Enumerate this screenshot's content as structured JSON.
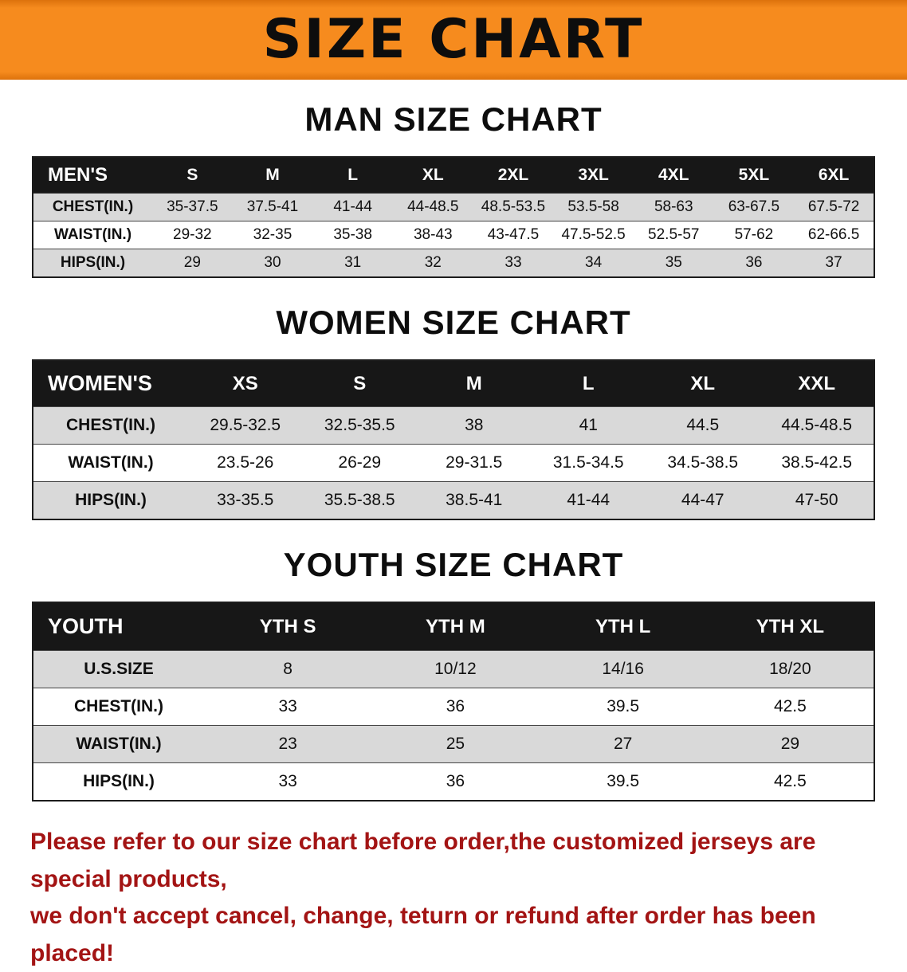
{
  "banner": {
    "title": "SIZE CHART",
    "background_color": "#f6871c"
  },
  "sections": [
    {
      "heading": "MAN SIZE CHART",
      "table": {
        "header_label": "MEN'S",
        "columns": [
          "S",
          "M",
          "L",
          "XL",
          "2XL",
          "3XL",
          "4XL",
          "5XL",
          "6XL"
        ],
        "rows": [
          {
            "label": "CHEST(IN.)",
            "values": [
              "35-37.5",
              "37.5-41",
              "41-44",
              "44-48.5",
              "48.5-53.5",
              "53.5-58",
              "58-63",
              "63-67.5",
              "67.5-72"
            ]
          },
          {
            "label": "WAIST(IN.)",
            "values": [
              "29-32",
              "32-35",
              "35-38",
              "38-43",
              "43-47.5",
              "47.5-52.5",
              "52.5-57",
              "57-62",
              "62-66.5"
            ]
          },
          {
            "label": "HIPS(IN.)",
            "values": [
              "29",
              "30",
              "31",
              "32",
              "33",
              "34",
              "35",
              "36",
              "37"
            ]
          }
        ]
      }
    },
    {
      "heading": "WOMEN SIZE CHART",
      "table": {
        "header_label": "WOMEN'S",
        "columns": [
          "XS",
          "S",
          "M",
          "L",
          "XL",
          "XXL"
        ],
        "rows": [
          {
            "label": "CHEST(IN.)",
            "values": [
              "29.5-32.5",
              "32.5-35.5",
              "38",
              "41",
              "44.5",
              "44.5-48.5"
            ]
          },
          {
            "label": "WAIST(IN.)",
            "values": [
              "23.5-26",
              "26-29",
              "29-31.5",
              "31.5-34.5",
              "34.5-38.5",
              "38.5-42.5"
            ]
          },
          {
            "label": "HIPS(IN.)",
            "values": [
              "33-35.5",
              "35.5-38.5",
              "38.5-41",
              "41-44",
              "44-47",
              "47-50"
            ]
          }
        ]
      }
    },
    {
      "heading": "YOUTH SIZE CHART",
      "table": {
        "header_label": "YOUTH",
        "columns": [
          "YTH S",
          "YTH M",
          "YTH L",
          "YTH XL"
        ],
        "rows": [
          {
            "label": "U.S.SIZE",
            "values": [
              "8",
              "10/12",
              "14/16",
              "18/20"
            ]
          },
          {
            "label": "CHEST(IN.)",
            "values": [
              "33",
              "36",
              "39.5",
              "42.5"
            ]
          },
          {
            "label": "WAIST(IN.)",
            "values": [
              "23",
              "25",
              "27",
              "29"
            ]
          },
          {
            "label": "HIPS(IN.)",
            "values": [
              "33",
              "36",
              "39.5",
              "42.5"
            ]
          }
        ]
      }
    }
  ],
  "footer": {
    "line1": "Please refer to our size chart before order,the customized jerseys are special products,",
    "line2": "we don't accept cancel, change, teturn or refund after order has been placed!",
    "text_color": "#a31414"
  }
}
